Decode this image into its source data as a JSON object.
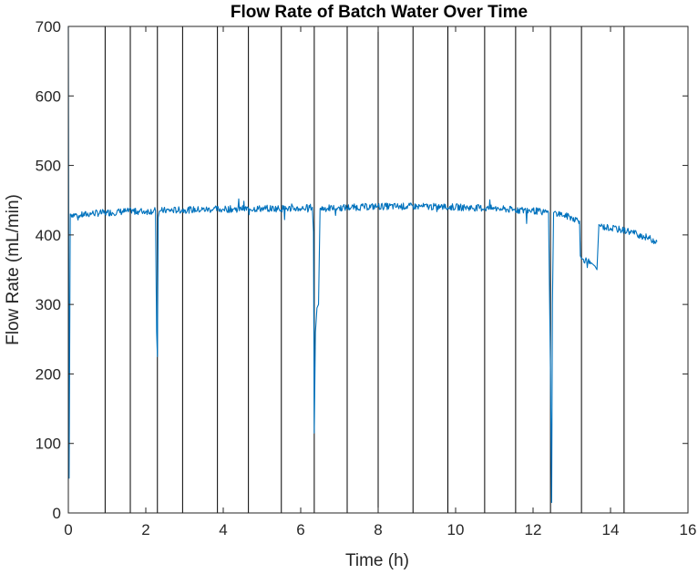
{
  "chart_data": {
    "type": "line",
    "title": "Flow Rate of Batch Water Over Time",
    "xlabel": "Time (h)",
    "ylabel": "Flow Rate (mL/min)",
    "xlim": [
      0,
      16
    ],
    "ylim": [
      0,
      700
    ],
    "x_ticks": [
      "0",
      "2",
      "4",
      "6",
      "8",
      "10",
      "12",
      "14",
      "16"
    ],
    "y_ticks": [
      "0",
      "100",
      "200",
      "300",
      "400",
      "500",
      "600",
      "700"
    ],
    "grid": false,
    "legend": "none",
    "line_color": "#0072BD",
    "vertical_markers_x": [
      0.95,
      1.6,
      2.3,
      2.95,
      3.85,
      4.65,
      5.5,
      6.35,
      7.2,
      8.0,
      8.9,
      9.8,
      10.75,
      11.55,
      12.45,
      13.25,
      14.35
    ],
    "series": [
      {
        "x": [
          0,
          0.02,
          0.05,
          0.3,
          0.6,
          1.0,
          1.5,
          2.0,
          2.25,
          2.28,
          2.3,
          2.32,
          2.35,
          2.4,
          3.0,
          4.0,
          5.0,
          6.0,
          6.3,
          6.33,
          6.35,
          6.38,
          6.42,
          6.46,
          6.5,
          7.0,
          8.0,
          9.0,
          10.0,
          11.0,
          11.5,
          12.0,
          12.4,
          12.45,
          12.48,
          12.5,
          12.53,
          12.57,
          12.6,
          12.8,
          13.0,
          13.2,
          13.22,
          13.25,
          13.3,
          13.5,
          13.6,
          13.65,
          13.7,
          13.75,
          14.0,
          14.5,
          15.0,
          15.2
        ],
        "y": [
          700,
          50,
          430,
          428,
          431,
          432,
          434,
          434,
          435,
          260,
          225,
          425,
          434,
          435,
          436,
          437,
          438,
          438,
          440,
          405,
          115,
          260,
          295,
          300,
          438,
          439,
          441,
          441,
          440,
          438,
          436,
          435,
          432,
          200,
          15,
          300,
          432,
          434,
          432,
          428,
          425,
          420,
          370,
          366,
          365,
          360,
          355,
          350,
          415,
          412,
          410,
          405,
          395,
          390
        ]
      }
    ]
  }
}
